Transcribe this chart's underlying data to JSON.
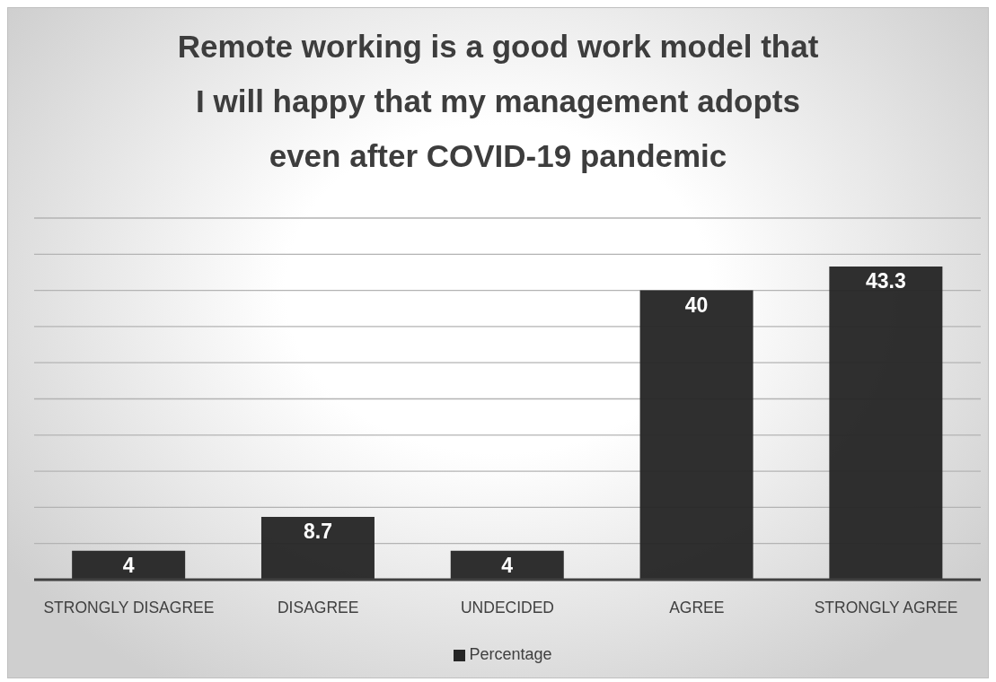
{
  "chart_data": {
    "type": "bar",
    "title": "Remote working is a good work model that I will happy that my management adopts even after COVID-19 pandemic",
    "categories": [
      "STRONGLY DISAGREE",
      "DISAGREE",
      "UNDECIDED",
      "AGREE",
      "STRONGLY AGREE"
    ],
    "series": [
      {
        "name": "Percentage",
        "color": "#262626",
        "values": [
          4,
          8.7,
          4,
          40,
          43.3
        ]
      }
    ],
    "ylim": [
      0,
      50
    ],
    "yticks": [
      {
        "value": 0,
        "label": null
      },
      {
        "value": 5,
        "label": null
      },
      {
        "value": 10,
        "label": null
      },
      {
        "value": 15,
        "label": null
      },
      {
        "value": 20,
        "label": null
      },
      {
        "value": 25,
        "label": null
      },
      {
        "value": 30,
        "label": null
      },
      {
        "value": 35,
        "label": null
      },
      {
        "value": 40,
        "label": null
      },
      {
        "value": 45,
        "label": null
      },
      {
        "value": 50,
        "label": null
      }
    ],
    "grid": "y",
    "legend": "bottom",
    "data_labels": true,
    "tick_labels": "x"
  }
}
